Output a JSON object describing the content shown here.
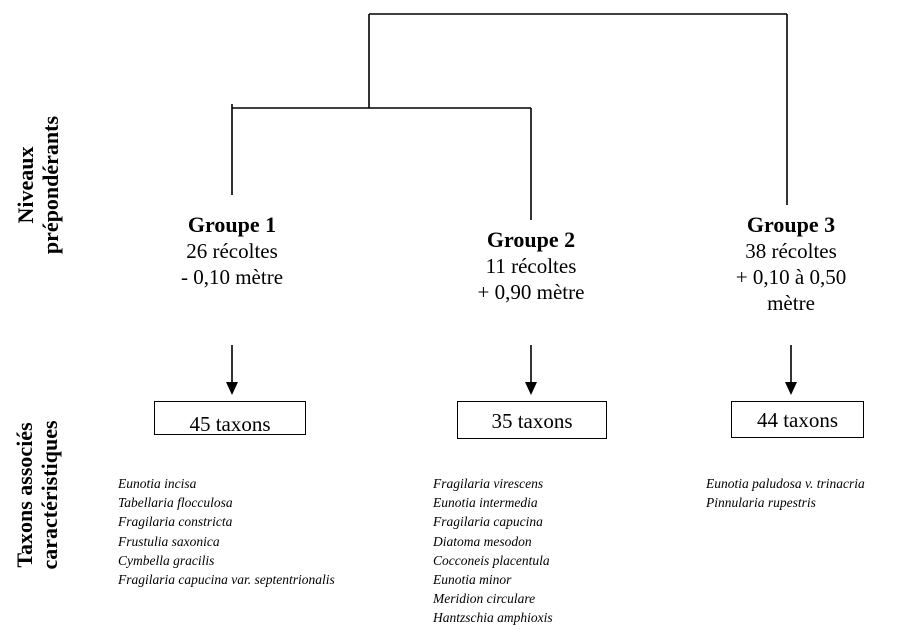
{
  "axis_labels": {
    "top": [
      "Niveaux",
      "prépondérants"
    ],
    "bottom": [
      "Taxons associés",
      "caractéristiques"
    ]
  },
  "groups": [
    {
      "title": "Groupe 1",
      "lines": [
        "26 récoltes",
        "- 0,10 mètre"
      ],
      "taxa_count": "45 taxons",
      "taxa": [
        "Eunotia incisa",
        "Tabellaria flocculosa",
        "Fragilaria constricta",
        "Frustulia saxonica",
        "Cymbella gracilis",
        "Fragilaria capucina var. septentrionalis"
      ]
    },
    {
      "title": "Groupe 2",
      "lines": [
        "11 récoltes",
        "+ 0,90 mètre"
      ],
      "taxa_count": "35 taxons",
      "taxa": [
        "Fragilaria virescens",
        "Eunotia intermedia",
        "Fragilaria capucina",
        "Diatoma mesodon",
        "Cocconeis placentula",
        "Eunotia minor",
        "Meridion circulare",
        "Hantzschia amphioxis"
      ]
    },
    {
      "title": "Groupe 3",
      "lines": [
        "38 récoltes",
        "+ 0,10 à 0,50",
        "mètre"
      ],
      "taxa_count": "44 taxons",
      "taxa": [
        "Eunotia paludosa v. trinacria",
        "Pinnularia rupestris"
      ]
    }
  ]
}
